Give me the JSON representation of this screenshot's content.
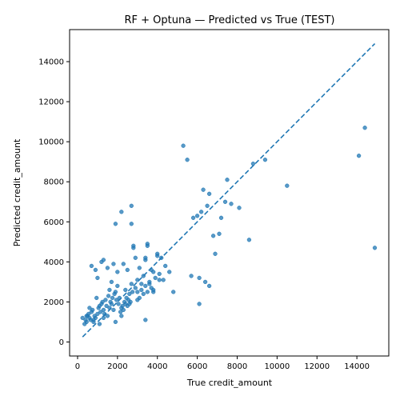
{
  "chart_data": {
    "type": "scatter",
    "title": "RF + Optuna — Predicted vs True (TEST)",
    "xlabel": "True credit_amount",
    "ylabel": "Predicted credit_amount",
    "xlim": [
      -400,
      15600
    ],
    "ylim": [
      -700,
      15600
    ],
    "xticks": [
      0,
      2000,
      4000,
      6000,
      8000,
      10000,
      12000,
      14000
    ],
    "yticks": [
      0,
      2000,
      4000,
      6000,
      8000,
      10000,
      12000,
      14000
    ],
    "grid": false,
    "point_color": "#1f77b4",
    "reference_line": {
      "style": "dashed",
      "color": "#1f77b4",
      "x": [
        250,
        14900
      ],
      "y": [
        250,
        14900
      ]
    },
    "points": [
      [
        250,
        1200
      ],
      [
        350,
        900
      ],
      [
        400,
        1100
      ],
      [
        450,
        1000
      ],
      [
        500,
        1300
      ],
      [
        550,
        1400
      ],
      [
        600,
        1200
      ],
      [
        650,
        1100
      ],
      [
        700,
        1500
      ],
      [
        750,
        1600
      ],
      [
        800,
        1000
      ],
      [
        850,
        1300
      ],
      [
        900,
        1200
      ],
      [
        950,
        2200
      ],
      [
        1000,
        1400
      ],
      [
        1050,
        1700
      ],
      [
        1100,
        1800
      ],
      [
        1150,
        1500
      ],
      [
        1200,
        1900
      ],
      [
        1250,
        2000
      ],
      [
        1300,
        1600
      ],
      [
        1350,
        1400
      ],
      [
        1400,
        2100
      ],
      [
        1450,
        1800
      ],
      [
        1500,
        1300
      ],
      [
        1550,
        2300
      ],
      [
        1600,
        1700
      ],
      [
        1650,
        2000
      ],
      [
        1700,
        1900
      ],
      [
        1750,
        2200
      ],
      [
        1800,
        1600
      ],
      [
        1850,
        2400
      ],
      [
        1900,
        2500
      ],
      [
        1950,
        2100
      ],
      [
        2000,
        2800
      ],
      [
        2050,
        1900
      ],
      [
        2100,
        2200
      ],
      [
        2150,
        1500
      ],
      [
        2200,
        1700
      ],
      [
        2250,
        1800
      ],
      [
        2300,
        1600
      ],
      [
        2350,
        2000
      ],
      [
        2400,
        1900
      ],
      [
        2450,
        2200
      ],
      [
        2500,
        1800
      ],
      [
        2550,
        2100
      ],
      [
        2600,
        2400
      ],
      [
        2650,
        2000
      ],
      [
        2700,
        2900
      ],
      [
        2750,
        2500
      ],
      [
        700,
        3800
      ],
      [
        900,
        3600
      ],
      [
        1000,
        3200
      ],
      [
        1200,
        4000
      ],
      [
        1300,
        4100
      ],
      [
        1500,
        3700
      ],
      [
        1800,
        3900
      ],
      [
        2000,
        3500
      ],
      [
        2200,
        6500
      ],
      [
        2300,
        3900
      ],
      [
        2500,
        3600
      ],
      [
        2700,
        6800
      ],
      [
        2800,
        4700
      ],
      [
        2900,
        4200
      ],
      [
        3000,
        3100
      ],
      [
        3100,
        3700
      ],
      [
        3200,
        2900
      ],
      [
        3300,
        3300
      ],
      [
        3400,
        4200
      ],
      [
        3500,
        4900
      ],
      [
        3600,
        3000
      ],
      [
        3700,
        3600
      ],
      [
        3800,
        3500
      ],
      [
        3900,
        3200
      ],
      [
        4000,
        4400
      ],
      [
        4100,
        3400
      ],
      [
        4200,
        4200
      ],
      [
        4300,
        3100
      ],
      [
        4400,
        3800
      ],
      [
        4600,
        3500
      ],
      [
        2900,
        2700
      ],
      [
        3000,
        2500
      ],
      [
        3100,
        2200
      ],
      [
        3200,
        2600
      ],
      [
        3300,
        2400
      ],
      [
        3400,
        2800
      ],
      [
        3500,
        2500
      ],
      [
        3600,
        2900
      ],
      [
        3700,
        2700
      ],
      [
        3800,
        2600
      ],
      [
        4800,
        2500
      ],
      [
        5300,
        9800
      ],
      [
        5500,
        9100
      ],
      [
        5800,
        6200
      ],
      [
        6000,
        6300
      ],
      [
        6200,
        6500
      ],
      [
        6300,
        7600
      ],
      [
        6500,
        6800
      ],
      [
        6600,
        7400
      ],
      [
        6800,
        5300
      ],
      [
        6900,
        4400
      ],
      [
        7100,
        5400
      ],
      [
        7200,
        6200
      ],
      [
        7400,
        7000
      ],
      [
        7500,
        8100
      ],
      [
        7700,
        6900
      ],
      [
        8100,
        6700
      ],
      [
        8600,
        5100
      ],
      [
        8800,
        8900
      ],
      [
        9400,
        9100
      ],
      [
        10500,
        7800
      ],
      [
        14100,
        9300
      ],
      [
        14400,
        10700
      ],
      [
        14900,
        4700
      ],
      [
        5700,
        3300
      ],
      [
        6100,
        1900
      ],
      [
        6100,
        3200
      ],
      [
        6400,
        3000
      ],
      [
        6600,
        2800
      ],
      [
        3400,
        1100
      ],
      [
        1900,
        5900
      ],
      [
        2700,
        5900
      ],
      [
        2800,
        4800
      ],
      [
        3500,
        4800
      ],
      [
        3400,
        4100
      ],
      [
        4000,
        4300
      ],
      [
        4100,
        3100
      ],
      [
        3800,
        2500
      ],
      [
        3000,
        2100
      ],
      [
        2200,
        1300
      ],
      [
        1900,
        1000
      ],
      [
        1300,
        1200
      ],
      [
        1100,
        900
      ],
      [
        600,
        1700
      ],
      [
        800,
        1100
      ],
      [
        450,
        1300
      ],
      [
        1600,
        2600
      ],
      [
        1700,
        3000
      ],
      [
        2400,
        2600
      ],
      [
        2600,
        1900
      ]
    ]
  }
}
